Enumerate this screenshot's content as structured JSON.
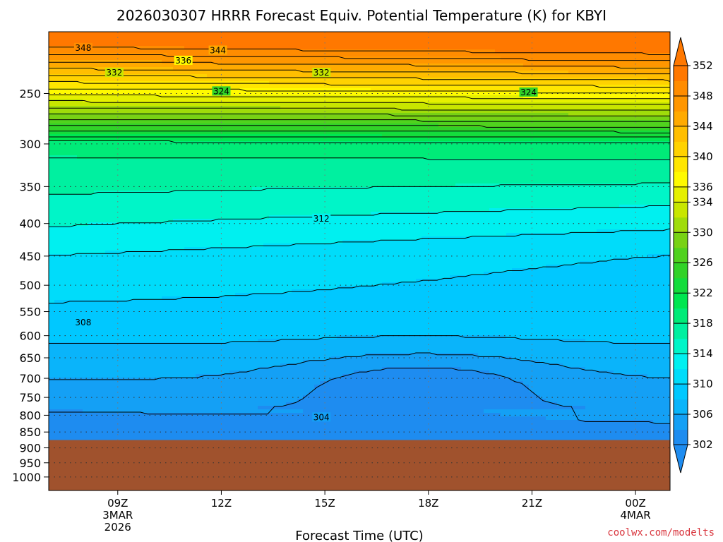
{
  "header": {
    "title": "2026030307 HRRR Forecast Equiv. Potential Temperature (K) for KBYI"
  },
  "credit": "coolwx.com/modelts",
  "chart_data": {
    "type": "contour",
    "title": "2026030307 HRRR Forecast Equiv. Potential Temperature (K) for KBYI",
    "xlabel": "Forecast Time (UTC)",
    "ylabel": "",
    "y_scale": "log-pressure",
    "y_range_hpa": [
      1050,
      200
    ],
    "y_ticks": [
      250,
      300,
      350,
      400,
      450,
      500,
      550,
      600,
      650,
      700,
      750,
      800,
      850,
      900,
      950,
      1000
    ],
    "x_ticks": [
      {
        "hour": 9,
        "lines": [
          "09Z",
          "3MAR",
          "2026"
        ]
      },
      {
        "hour": 12,
        "lines": [
          "12Z"
        ]
      },
      {
        "hour": 15,
        "lines": [
          "15Z"
        ]
      },
      {
        "hour": 18,
        "lines": [
          "18Z"
        ]
      },
      {
        "hour": 21,
        "lines": [
          "21Z"
        ]
      },
      {
        "hour": 24,
        "lines": [
          "00Z",
          "4MAR"
        ]
      }
    ],
    "x_range_hours": [
      7,
      25
    ],
    "ground_level_hpa": 875,
    "ground_color": "#a0522d",
    "contour_interval_K": 2,
    "colorbar": {
      "levels": [
        302,
        304,
        306,
        308,
        310,
        312,
        314,
        316,
        318,
        320,
        322,
        324,
        326,
        328,
        330,
        332,
        334,
        336,
        338,
        340,
        342,
        344,
        346,
        348,
        350,
        352
      ],
      "tick_labels": [
        302,
        306,
        310,
        314,
        318,
        322,
        326,
        330,
        334,
        336,
        340,
        344,
        348,
        352
      ],
      "colors": [
        "#1e8cf0",
        "#14a0f5",
        "#0ab4fa",
        "#00c8ff",
        "#00dcfa",
        "#00f0f0",
        "#00f5c8",
        "#00f0a0",
        "#00eb78",
        "#00e650",
        "#14dc3c",
        "#32d228",
        "#50d21e",
        "#78d214",
        "#a0dc0a",
        "#c8e600",
        "#e6f000",
        "#fffa00",
        "#ffe600",
        "#ffd200",
        "#ffbe00",
        "#ffaa00",
        "#ff9600",
        "#ff8c00",
        "#ff7800"
      ]
    },
    "contour_labels": [
      {
        "value": "348",
        "hour": 8.0,
        "p": 212
      },
      {
        "value": "344",
        "hour": 11.9,
        "p": 214
      },
      {
        "value": "336",
        "hour": 10.9,
        "p": 222
      },
      {
        "value": "332",
        "hour": 8.9,
        "p": 232
      },
      {
        "value": "332",
        "hour": 14.9,
        "p": 232
      },
      {
        "value": "324",
        "hour": 12.0,
        "p": 248
      },
      {
        "value": "324",
        "hour": 20.9,
        "p": 249
      },
      {
        "value": "312",
        "hour": 14.9,
        "p": 393
      },
      {
        "value": "308",
        "hour": 8.0,
        "p": 572
      },
      {
        "value": "304",
        "hour": 14.9,
        "p": 806
      }
    ]
  }
}
